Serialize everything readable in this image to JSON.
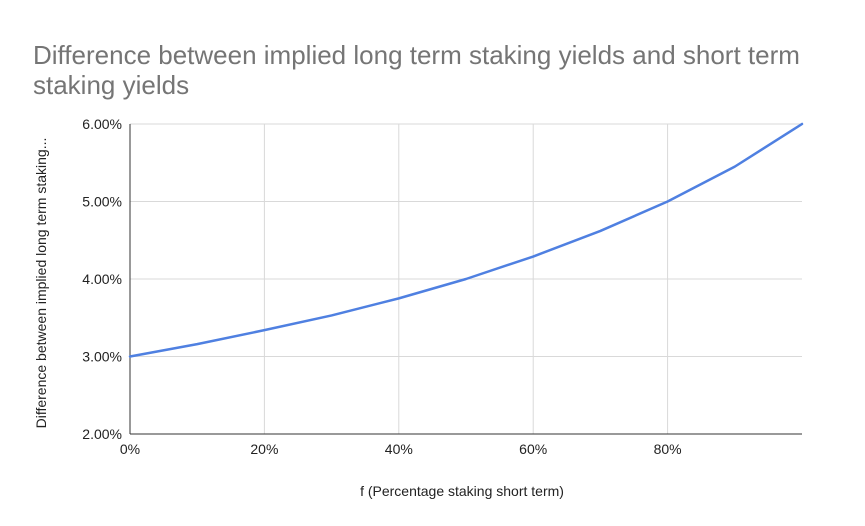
{
  "chart_data": {
    "type": "line",
    "title": "Difference between implied long term staking yields and short term staking yields",
    "xlabel": "f (Percentage staking short term)",
    "ylabel": "Difference between implied long term staking...",
    "x": [
      0,
      0.1,
      0.2,
      0.3,
      0.4,
      0.5,
      0.6,
      0.7,
      0.8,
      0.9,
      1.0
    ],
    "series": [
      {
        "values": [
          0.03,
          0.0316,
          0.0334,
          0.0353,
          0.0375,
          0.04,
          0.0429,
          0.0462,
          0.05,
          0.0545,
          0.06
        ],
        "color": "#4f80e1"
      }
    ],
    "xlim": [
      0,
      1.0
    ],
    "ylim": [
      0.02,
      0.06
    ],
    "xticks": [
      0,
      0.2,
      0.4,
      0.6,
      0.8
    ],
    "xtick_labels": [
      "0%",
      "20%",
      "40%",
      "60%",
      "80%"
    ],
    "yticks": [
      0.02,
      0.03,
      0.04,
      0.05,
      0.06
    ],
    "ytick_labels": [
      "2.00%",
      "3.00%",
      "4.00%",
      "5.00%",
      "6.00%"
    ],
    "grid": true,
    "legend": "none"
  }
}
